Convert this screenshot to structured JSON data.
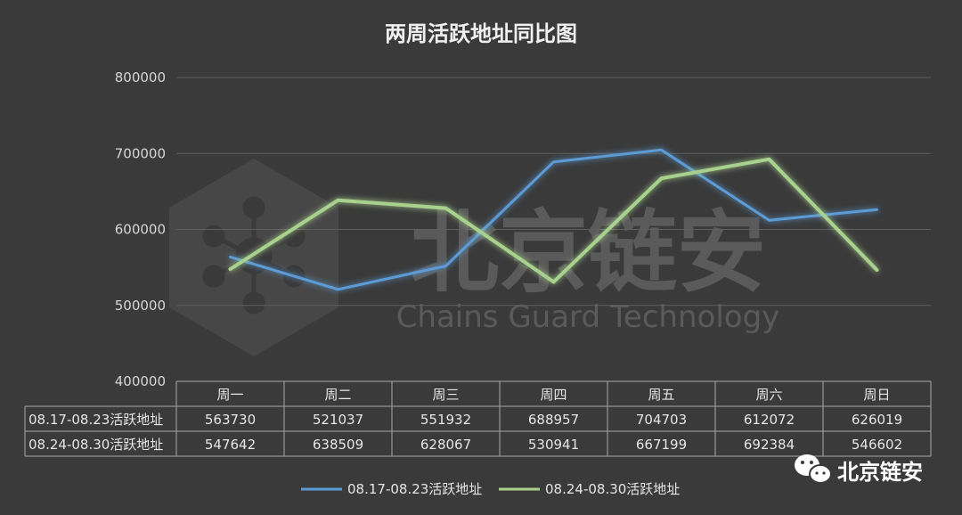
{
  "chart_data": {
    "type": "line",
    "title": "两周活跃地址同比图",
    "categories": [
      "周一",
      "周二",
      "周三",
      "周四",
      "周五",
      "周六",
      "周日"
    ],
    "series": [
      {
        "name": "08.17-08.23活跃地址",
        "values": [
          563730,
          521037,
          551932,
          688957,
          704703,
          612072,
          626019
        ],
        "color": "#5b9bd5"
      },
      {
        "name": "08.24-08.30活跃地址",
        "values": [
          547642,
          638509,
          628067,
          530941,
          667199,
          692384,
          546602
        ],
        "color": "#a9d18e"
      }
    ],
    "ylim": [
      400000,
      800000
    ],
    "yticks": [
      "400000",
      "500000",
      "600000",
      "700000",
      "800000"
    ],
    "grid": true,
    "legend": "bottom",
    "data_table": true
  },
  "watermark": {
    "text_cn": "北京链安",
    "text_en": "Chains Guard Technology"
  },
  "brand": {
    "label": "北京链安",
    "icon": "wechat-icon"
  }
}
